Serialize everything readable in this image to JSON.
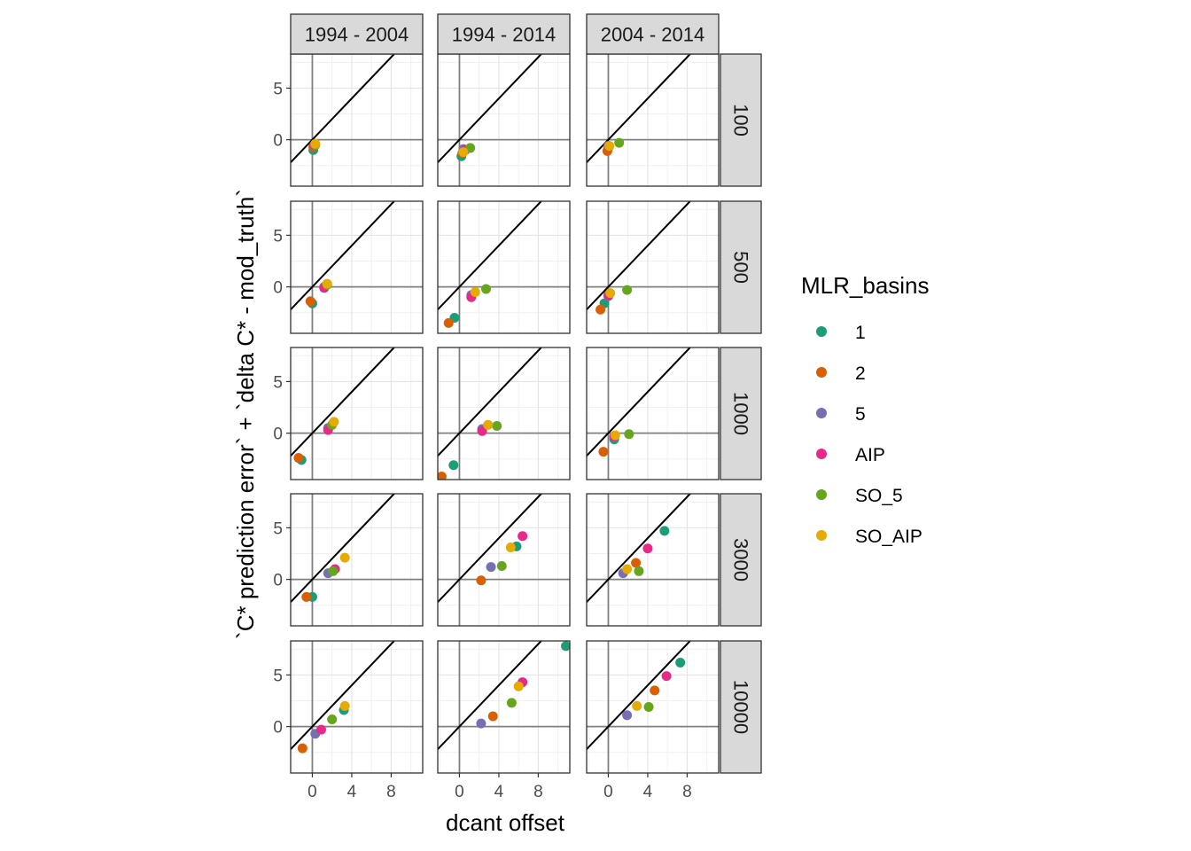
{
  "chart_data": {
    "type": "scatter",
    "xlabel": "dcant offset",
    "ylabel": "`C* prediction error` + `delta C* - mod_truth`",
    "xlim": [
      -2.2,
      11.2
    ],
    "ylim": [
      -4.5,
      8.3
    ],
    "x_ticks": [
      0,
      4,
      8
    ],
    "y_ticks": [
      0,
      5
    ],
    "grid": true,
    "reference_lines": {
      "diagonal": "y = x",
      "vertical": "x = 0",
      "horizontal": "y = 0"
    },
    "legend": {
      "title": "MLR_basins",
      "position": "right",
      "entries": [
        {
          "label": "1",
          "color": "#1b9e77"
        },
        {
          "label": "2",
          "color": "#d95f02"
        },
        {
          "label": "5",
          "color": "#7570b3"
        },
        {
          "label": "AIP",
          "color": "#e7298a"
        },
        {
          "label": "SO_5",
          "color": "#66a61e"
        },
        {
          "label": "SO_AIP",
          "color": "#e6ab02"
        }
      ]
    },
    "col_facets": [
      "1994 - 2004",
      "1994 - 2014",
      "2004 - 2014"
    ],
    "row_facets": [
      "100",
      "500",
      "1000",
      "3000",
      "10000"
    ],
    "panels": [
      {
        "row": "100",
        "col": "1994 - 2004",
        "points": [
          {
            "basin": "1",
            "x": 0.1,
            "y": -1.0
          },
          {
            "basin": "2",
            "x": 0.1,
            "y": -0.7
          },
          {
            "basin": "5",
            "x": 0.2,
            "y": -0.6
          },
          {
            "basin": "AIP",
            "x": 0.2,
            "y": -0.5
          },
          {
            "basin": "SO_5",
            "x": 0.3,
            "y": -0.5
          },
          {
            "basin": "SO_AIP",
            "x": 0.3,
            "y": -0.4
          }
        ]
      },
      {
        "row": "100",
        "col": "1994 - 2014",
        "points": [
          {
            "basin": "1",
            "x": 0.2,
            "y": -1.6
          },
          {
            "basin": "2",
            "x": 0.3,
            "y": -1.3
          },
          {
            "basin": "5",
            "x": 0.4,
            "y": -0.9
          },
          {
            "basin": "AIP",
            "x": 0.6,
            "y": -1.0
          },
          {
            "basin": "SO_5",
            "x": 1.1,
            "y": -0.8
          },
          {
            "basin": "SO_AIP",
            "x": 0.4,
            "y": -1.2
          }
        ]
      },
      {
        "row": "100",
        "col": "2004 - 2014",
        "points": [
          {
            "basin": "1",
            "x": 0.0,
            "y": -0.8
          },
          {
            "basin": "2",
            "x": -0.1,
            "y": -1.1
          },
          {
            "basin": "5",
            "x": 0.0,
            "y": -0.6
          },
          {
            "basin": "AIP",
            "x": 0.1,
            "y": -0.6
          },
          {
            "basin": "SO_5",
            "x": 1.1,
            "y": -0.3
          },
          {
            "basin": "SO_AIP",
            "x": 0.1,
            "y": -0.6
          }
        ]
      },
      {
        "row": "500",
        "col": "1994 - 2004",
        "points": [
          {
            "basin": "1",
            "x": 0.0,
            "y": -1.6
          },
          {
            "basin": "2",
            "x": -0.2,
            "y": -1.4
          },
          {
            "basin": "5",
            "x": 1.2,
            "y": 0.0
          },
          {
            "basin": "AIP",
            "x": 1.2,
            "y": -0.1
          },
          {
            "basin": "SO_5",
            "x": 1.5,
            "y": 0.2
          },
          {
            "basin": "SO_AIP",
            "x": 1.5,
            "y": 0.3
          }
        ]
      },
      {
        "row": "500",
        "col": "1994 - 2014",
        "points": [
          {
            "basin": "1",
            "x": -0.5,
            "y": -3.0
          },
          {
            "basin": "2",
            "x": -1.1,
            "y": -3.5
          },
          {
            "basin": "5",
            "x": 1.2,
            "y": -0.8
          },
          {
            "basin": "AIP",
            "x": 1.2,
            "y": -1.0
          },
          {
            "basin": "SO_5",
            "x": 2.7,
            "y": -0.2
          },
          {
            "basin": "SO_AIP",
            "x": 1.6,
            "y": -0.5
          }
        ]
      },
      {
        "row": "500",
        "col": "2004 - 2014",
        "points": [
          {
            "basin": "1",
            "x": -0.4,
            "y": -1.6
          },
          {
            "basin": "2",
            "x": -0.8,
            "y": -2.2
          },
          {
            "basin": "5",
            "x": 0.0,
            "y": -0.9
          },
          {
            "basin": "AIP",
            "x": 0.0,
            "y": -0.8
          },
          {
            "basin": "SO_5",
            "x": 1.9,
            "y": -0.3
          },
          {
            "basin": "SO_AIP",
            "x": 0.2,
            "y": -0.6
          }
        ]
      },
      {
        "row": "1000",
        "col": "1994 - 2004",
        "points": [
          {
            "basin": "1",
            "x": -1.1,
            "y": -2.6
          },
          {
            "basin": "2",
            "x": -1.4,
            "y": -2.4
          },
          {
            "basin": "5",
            "x": 1.6,
            "y": 0.5
          },
          {
            "basin": "AIP",
            "x": 1.6,
            "y": 0.3
          },
          {
            "basin": "SO_5",
            "x": 2.0,
            "y": 0.8
          },
          {
            "basin": "SO_AIP",
            "x": 2.2,
            "y": 1.1
          }
        ]
      },
      {
        "row": "1000",
        "col": "1994 - 2014",
        "points": [
          {
            "basin": "1",
            "x": -0.6,
            "y": -3.1
          },
          {
            "basin": "2",
            "x": -1.8,
            "y": -4.2
          },
          {
            "basin": "5",
            "x": 2.3,
            "y": 0.4
          },
          {
            "basin": "AIP",
            "x": 2.3,
            "y": 0.2
          },
          {
            "basin": "SO_5",
            "x": 3.8,
            "y": 0.7
          },
          {
            "basin": "SO_AIP",
            "x": 2.9,
            "y": 0.8
          }
        ]
      },
      {
        "row": "1000",
        "col": "2004 - 2014",
        "points": [
          {
            "basin": "1",
            "x": 0.6,
            "y": -0.6
          },
          {
            "basin": "2",
            "x": -0.5,
            "y": -1.8
          },
          {
            "basin": "5",
            "x": 0.6,
            "y": -0.4
          },
          {
            "basin": "AIP",
            "x": 0.6,
            "y": -0.3
          },
          {
            "basin": "SO_5",
            "x": 2.1,
            "y": -0.1
          },
          {
            "basin": "SO_AIP",
            "x": 0.7,
            "y": -0.2
          }
        ]
      },
      {
        "row": "3000",
        "col": "1994 - 2004",
        "points": [
          {
            "basin": "1",
            "x": 0.0,
            "y": -1.7
          },
          {
            "basin": "2",
            "x": -0.6,
            "y": -1.7
          },
          {
            "basin": "5",
            "x": 1.6,
            "y": 0.6
          },
          {
            "basin": "AIP",
            "x": 2.3,
            "y": 1.0
          },
          {
            "basin": "SO_5",
            "x": 2.1,
            "y": 0.8
          },
          {
            "basin": "SO_AIP",
            "x": 3.3,
            "y": 2.1
          }
        ]
      },
      {
        "row": "3000",
        "col": "1994 - 2014",
        "points": [
          {
            "basin": "1",
            "x": 5.8,
            "y": 3.2
          },
          {
            "basin": "2",
            "x": 2.2,
            "y": -0.1
          },
          {
            "basin": "5",
            "x": 3.2,
            "y": 1.2
          },
          {
            "basin": "AIP",
            "x": 6.4,
            "y": 4.2
          },
          {
            "basin": "SO_5",
            "x": 4.3,
            "y": 1.3
          },
          {
            "basin": "SO_AIP",
            "x": 5.2,
            "y": 3.1
          }
        ]
      },
      {
        "row": "3000",
        "col": "2004 - 2014",
        "points": [
          {
            "basin": "1",
            "x": 5.7,
            "y": 4.7
          },
          {
            "basin": "2",
            "x": 2.8,
            "y": 1.6
          },
          {
            "basin": "5",
            "x": 1.5,
            "y": 0.6
          },
          {
            "basin": "AIP",
            "x": 4.0,
            "y": 3.0
          },
          {
            "basin": "SO_5",
            "x": 3.1,
            "y": 0.8
          },
          {
            "basin": "SO_AIP",
            "x": 1.9,
            "y": 1.0
          }
        ]
      },
      {
        "row": "10000",
        "col": "1994 - 2004",
        "points": [
          {
            "basin": "1",
            "x": 3.2,
            "y": 1.6
          },
          {
            "basin": "2",
            "x": -1.0,
            "y": -2.1
          },
          {
            "basin": "5",
            "x": 0.3,
            "y": -0.7
          },
          {
            "basin": "AIP",
            "x": 0.9,
            "y": -0.3
          },
          {
            "basin": "SO_5",
            "x": 2.0,
            "y": 0.7
          },
          {
            "basin": "SO_AIP",
            "x": 3.3,
            "y": 2.0
          }
        ]
      },
      {
        "row": "10000",
        "col": "1994 - 2014",
        "points": [
          {
            "basin": "1",
            "x": 10.8,
            "y": 7.8
          },
          {
            "basin": "2",
            "x": 3.4,
            "y": 1.0
          },
          {
            "basin": "5",
            "x": 2.2,
            "y": 0.3
          },
          {
            "basin": "AIP",
            "x": 6.4,
            "y": 4.3
          },
          {
            "basin": "SO_5",
            "x": 5.3,
            "y": 2.3
          },
          {
            "basin": "SO_AIP",
            "x": 6.0,
            "y": 3.9
          }
        ]
      },
      {
        "row": "10000",
        "col": "2004 - 2014",
        "points": [
          {
            "basin": "1",
            "x": 7.3,
            "y": 6.2
          },
          {
            "basin": "2",
            "x": 4.7,
            "y": 3.5
          },
          {
            "basin": "5",
            "x": 1.9,
            "y": 1.1
          },
          {
            "basin": "AIP",
            "x": 5.9,
            "y": 4.9
          },
          {
            "basin": "SO_5",
            "x": 4.1,
            "y": 1.9
          },
          {
            "basin": "SO_AIP",
            "x": 2.9,
            "y": 2.0
          }
        ]
      }
    ]
  }
}
